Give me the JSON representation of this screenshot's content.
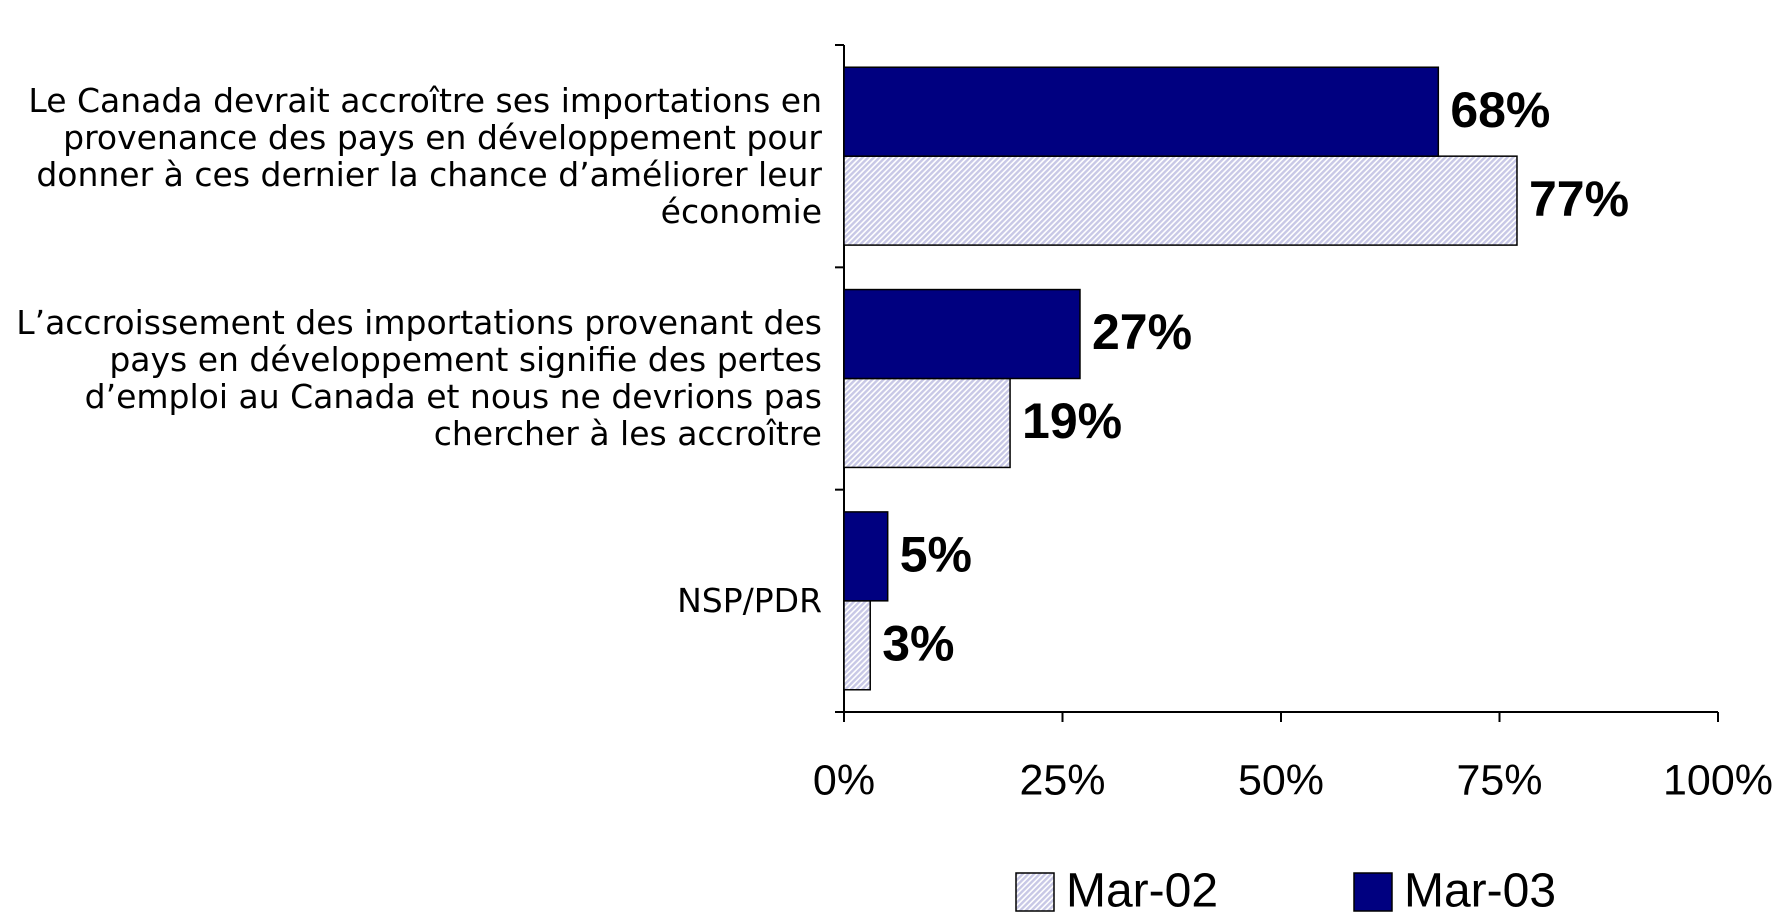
{
  "chart_data": {
    "type": "bar",
    "orientation": "horizontal",
    "categories": [
      "Le Canada devrait accroître ses importations en provenance des pays en développement pour donner à ces dernier la chance d’améliorer leur économie",
      "L’accroissement des importations provenant des pays en développement signifie des pertes d’emploi au Canada et nous ne devrions pas chercher à les accroître",
      "NSP/PDR"
    ],
    "series": [
      {
        "name": "Mar-02",
        "color": "#c8c8e6",
        "pattern": "hatch",
        "values": [
          77,
          19,
          3
        ],
        "value_labels": [
          "77%",
          "19%",
          "3%"
        ]
      },
      {
        "name": "Mar-03",
        "color": "#000080",
        "values": [
          68,
          27,
          5
        ],
        "value_labels": [
          "68%",
          "27%",
          "5%"
        ]
      }
    ],
    "xlim": [
      0,
      100
    ],
    "xticks": [
      {
        "value": 0,
        "label": "0%"
      },
      {
        "value": 25,
        "label": "25%"
      },
      {
        "value": 50,
        "label": "50%"
      },
      {
        "value": 75,
        "label": "75%"
      },
      {
        "value": 100,
        "label": "100%"
      }
    ],
    "legend": "bottom"
  }
}
